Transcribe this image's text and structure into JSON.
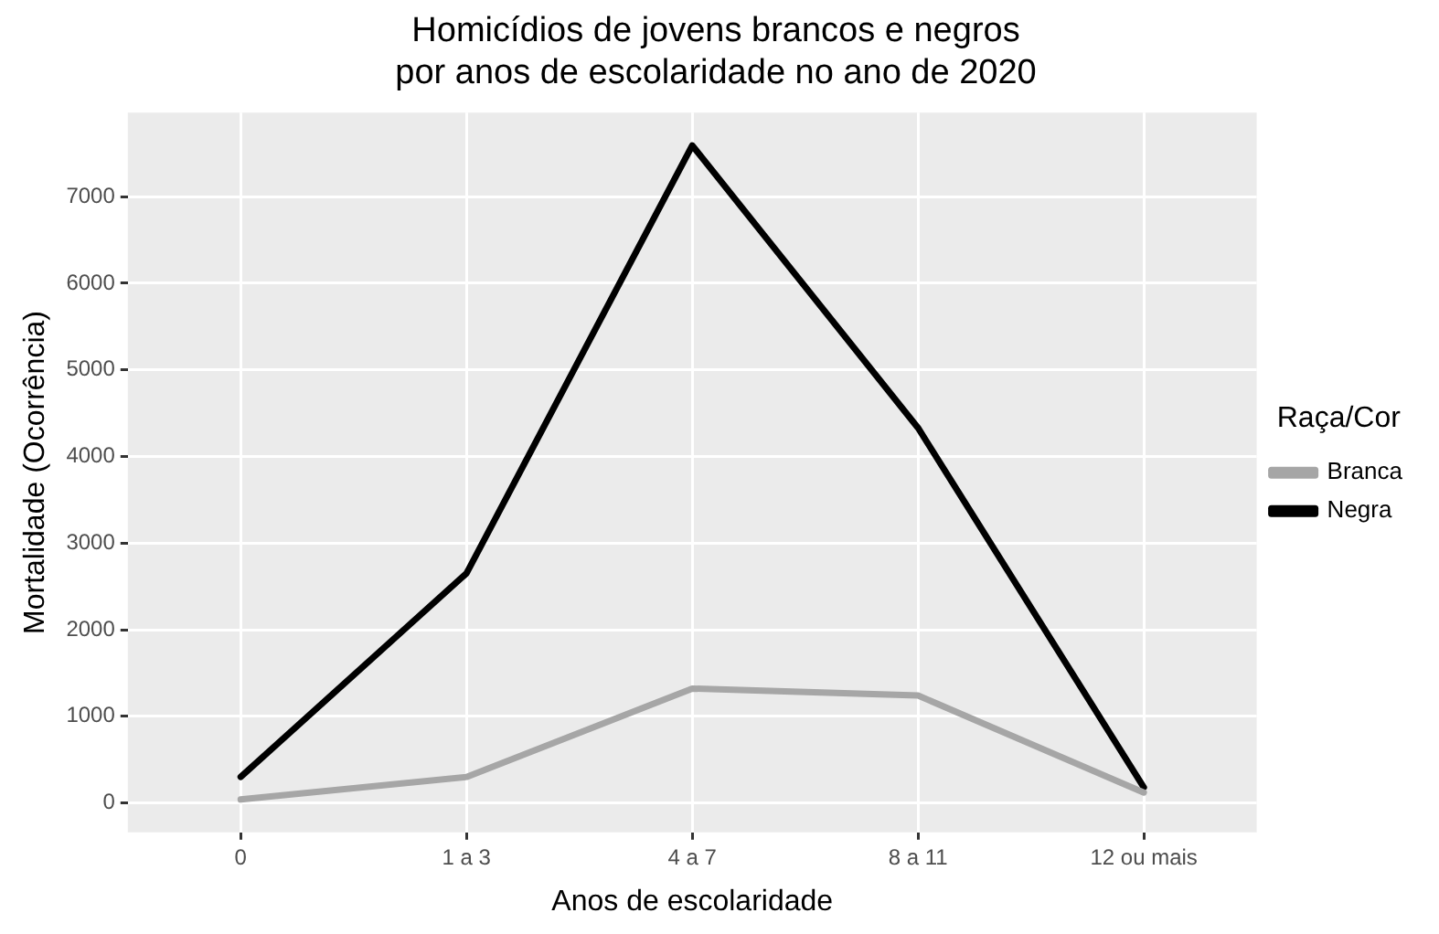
{
  "chart_data": {
    "type": "line",
    "title": "Homicídios de jovens brancos e negros\npor anos de escolaridade no ano de 2020",
    "xlabel": "Anos de escolaridade",
    "ylabel": "Mortalidade (Ocorrência)",
    "legend_title": "Raça/Cor",
    "categories": [
      "0",
      "1 a 3",
      "4 a 7",
      "8 a 11",
      "12 ou mais"
    ],
    "series": [
      {
        "name": "Branca",
        "color": "#a6a6a6",
        "values": [
          40,
          300,
          1320,
          1240,
          120
        ]
      },
      {
        "name": "Negra",
        "color": "#000000",
        "values": [
          300,
          2650,
          7590,
          4330,
          180
        ]
      }
    ],
    "ylim": [
      -340,
      7970
    ],
    "yticks": [
      0,
      1000,
      2000,
      3000,
      4000,
      5000,
      6000,
      7000
    ],
    "grid": true,
    "legend": "right",
    "marker": "none",
    "line_style": "solid"
  }
}
